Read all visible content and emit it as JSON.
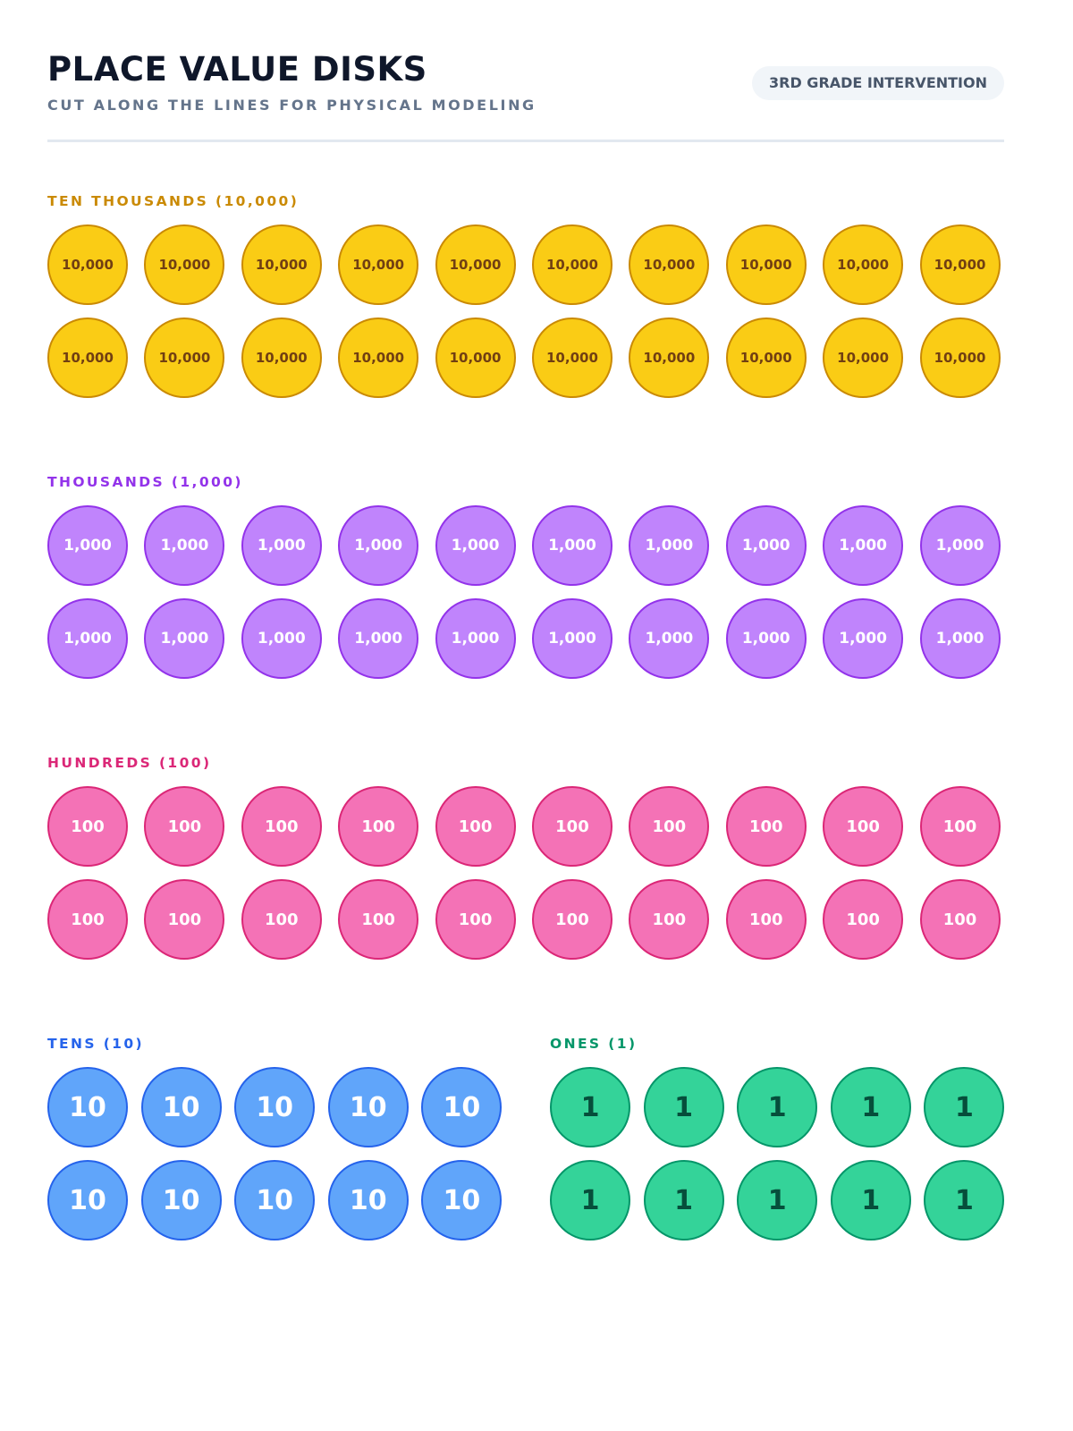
{
  "header": {
    "title": "PLACE VALUE DISKS",
    "subtitle": "CUT ALONG THE LINES FOR PHYSICAL MODELING",
    "badge": "3RD GRADE INTERVENTION"
  },
  "sections": [
    {
      "id": "ten-thousands",
      "label": "TEN THOUSANDS (10,000)",
      "disk_value": "10,000",
      "count": 20,
      "columns": 10,
      "label_color": "#CA8A04",
      "fill": "#FACC15",
      "border": "#CA8A04",
      "text_color": "#713F12"
    },
    {
      "id": "thousands",
      "label": "THOUSANDS (1,000)",
      "disk_value": "1,000",
      "count": 20,
      "columns": 10,
      "label_color": "#9333EA",
      "fill": "#C084FC",
      "border": "#9333EA",
      "text_color": "#FFFFFF"
    },
    {
      "id": "hundreds",
      "label": "HUNDREDS (100)",
      "disk_value": "100",
      "count": 20,
      "columns": 10,
      "label_color": "#DB2777",
      "fill": "#F472B6",
      "border": "#DB2777",
      "text_color": "#FFFFFF"
    },
    {
      "id": "tens",
      "label": "TENS (10)",
      "disk_value": "10",
      "count": 10,
      "columns": 5,
      "label_color": "#2563EB",
      "fill": "#60A5FA",
      "border": "#2563EB",
      "text_color": "#FFFFFF"
    },
    {
      "id": "ones",
      "label": "ONES (1)",
      "disk_value": "1",
      "count": 10,
      "columns": 5,
      "label_color": "#059669",
      "fill": "#34D399",
      "border": "#059669",
      "text_color": "#064E3B"
    }
  ]
}
